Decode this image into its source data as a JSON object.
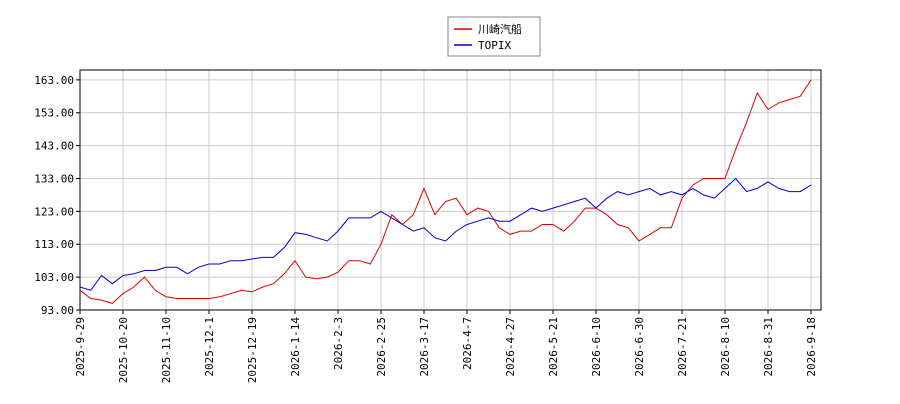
{
  "chart_data": {
    "type": "line",
    "categories": [
      "2025-9-29",
      null,
      null,
      null,
      "2025-10-20",
      null,
      null,
      null,
      "2025-11-10",
      null,
      null,
      null,
      "2025-12-1",
      null,
      null,
      null,
      "2025-12-19",
      null,
      null,
      null,
      "2026-1-14",
      null,
      null,
      null,
      "2026-2-3",
      null,
      null,
      null,
      "2026-2-25",
      null,
      null,
      null,
      "2026-3-17",
      null,
      null,
      null,
      "2026-4-7",
      null,
      null,
      null,
      "2026-4-27",
      null,
      null,
      null,
      "2026-5-21",
      null,
      null,
      null,
      "2026-6-10",
      null,
      null,
      null,
      "2026-6-30",
      null,
      null,
      null,
      "2026-7-21",
      null,
      null,
      null,
      "2026-8-10",
      null,
      null,
      null,
      "2026-8-31",
      null,
      null,
      null,
      "2026-9-18"
    ],
    "series": [
      {
        "name": "川崎汽船",
        "color": "#dd0000",
        "values": [
          99,
          96.5,
          96,
          95,
          98,
          100,
          103,
          99,
          97,
          96.5,
          96.5,
          96.5,
          96.5,
          97,
          98,
          99,
          98.5,
          100,
          101,
          104,
          108,
          103,
          102.5,
          103,
          104.5,
          108,
          108,
          107,
          113,
          122,
          119,
          122,
          130,
          122,
          126,
          127,
          122,
          124,
          123,
          118,
          116,
          117,
          117,
          119,
          119,
          117,
          120,
          124,
          124,
          122,
          119,
          118,
          114,
          116,
          118,
          118,
          127,
          131,
          133,
          133,
          133,
          142,
          150,
          159,
          154,
          156,
          157,
          158,
          163
        ]
      },
      {
        "name": "TOPIX",
        "color": "#0000cc",
        "values": [
          100,
          99,
          103.5,
          101,
          103.5,
          104,
          105,
          105,
          106,
          106,
          104,
          106,
          107,
          107,
          108,
          108,
          108.5,
          109,
          109,
          112,
          116.5,
          116,
          115,
          114,
          117,
          121,
          121,
          121,
          123,
          121,
          119,
          117,
          118,
          115,
          114,
          117,
          119,
          120,
          121,
          120,
          120,
          122,
          124,
          123,
          124,
          125,
          126,
          127,
          124,
          127,
          129,
          128,
          129,
          130,
          128,
          129,
          128,
          130,
          128,
          127,
          130,
          133,
          129,
          130,
          132,
          130,
          129,
          129,
          131
        ]
      }
    ],
    "ylim": [
      93,
      166
    ],
    "yticks": [
      {
        "value": 93,
        "label": "93.00"
      },
      {
        "value": 103,
        "label": "103.00"
      },
      {
        "value": 113,
        "label": "113.00"
      },
      {
        "value": 123,
        "label": "123.00"
      },
      {
        "value": 133,
        "label": "133.00"
      },
      {
        "value": 143,
        "label": "143.00"
      },
      {
        "value": 153,
        "label": "153.00"
      },
      {
        "value": 163,
        "label": "163.00"
      }
    ],
    "grid": true,
    "legend": "top"
  }
}
